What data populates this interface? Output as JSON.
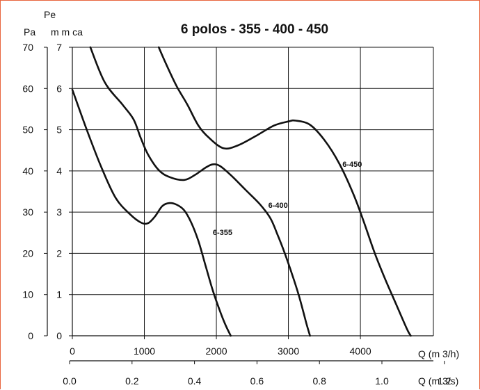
{
  "chart_data": {
    "type": "line",
    "title": "6 polos - 355 - 400 - 450",
    "y_left_label": "Pa",
    "y_right_label_top": "Pe",
    "y_right_label_bottom": "m m ca",
    "x_label_top": "Q (m 3/h)",
    "x_label_bottom": "Q (m 3/s)",
    "xlim": [
      0,
      5000
    ],
    "ylim": [
      0,
      7
    ],
    "grid": true,
    "x_ticks": [
      {
        "value": 0,
        "label": "0"
      },
      {
        "value": 1000,
        "label": "1000"
      },
      {
        "value": 2000,
        "label": "2000"
      },
      {
        "value": 3000,
        "label": "3000"
      },
      {
        "value": 4000,
        "label": "4000"
      }
    ],
    "x2_ticks": [
      {
        "value": 0.0,
        "label": "0.0"
      },
      {
        "value": 0.2,
        "label": "0.2"
      },
      {
        "value": 0.4,
        "label": "0.4"
      },
      {
        "value": 0.6,
        "label": "0.6"
      },
      {
        "value": 0.8,
        "label": "0.8"
      },
      {
        "value": 1.0,
        "label": "1.0"
      },
      {
        "value": 1.2,
        "label": "1.2"
      }
    ],
    "y_ticks": [
      {
        "value": 0,
        "label": "0"
      },
      {
        "value": 1,
        "label": "1"
      },
      {
        "value": 2,
        "label": "2"
      },
      {
        "value": 3,
        "label": "3"
      },
      {
        "value": 4,
        "label": "4"
      },
      {
        "value": 5,
        "label": "5"
      },
      {
        "value": 6,
        "label": "6"
      },
      {
        "value": 7,
        "label": "7"
      }
    ],
    "y_pa_ticks": [
      {
        "value": 0,
        "label": "0"
      },
      {
        "value": 10,
        "label": "10"
      },
      {
        "value": 20,
        "label": "20"
      },
      {
        "value": 30,
        "label": "30"
      },
      {
        "value": 40,
        "label": "40"
      },
      {
        "value": 50,
        "label": "50"
      },
      {
        "value": 60,
        "label": "60"
      },
      {
        "value": 70,
        "label": "70"
      }
    ],
    "series": [
      {
        "name": "6-355",
        "label_at": [
          1950,
          2.45
        ],
        "points": [
          [
            0,
            5.97
          ],
          [
            200,
            5.0
          ],
          [
            400,
            4.1
          ],
          [
            600,
            3.35
          ],
          [
            800,
            2.95
          ],
          [
            950,
            2.75
          ],
          [
            1050,
            2.73
          ],
          [
            1150,
            2.9
          ],
          [
            1250,
            3.15
          ],
          [
            1350,
            3.22
          ],
          [
            1450,
            3.18
          ],
          [
            1550,
            3.05
          ],
          [
            1650,
            2.75
          ],
          [
            1750,
            2.3
          ],
          [
            1850,
            1.7
          ],
          [
            1950,
            1.1
          ],
          [
            2050,
            0.6
          ],
          [
            2130,
            0.25
          ],
          [
            2200,
            0.0
          ]
        ]
      },
      {
        "name": "6-400",
        "label_at": [
          2720,
          3.1
        ],
        "points": [
          [
            250,
            7.0
          ],
          [
            450,
            6.15
          ],
          [
            700,
            5.6
          ],
          [
            850,
            5.25
          ],
          [
            950,
            4.8
          ],
          [
            1050,
            4.4
          ],
          [
            1200,
            4.02
          ],
          [
            1350,
            3.85
          ],
          [
            1550,
            3.78
          ],
          [
            1700,
            3.9
          ],
          [
            1850,
            4.08
          ],
          [
            1950,
            4.16
          ],
          [
            2050,
            4.12
          ],
          [
            2200,
            3.9
          ],
          [
            2400,
            3.55
          ],
          [
            2600,
            3.2
          ],
          [
            2750,
            2.85
          ],
          [
            2850,
            2.45
          ],
          [
            2950,
            2.0
          ],
          [
            3050,
            1.5
          ],
          [
            3150,
            0.95
          ],
          [
            3250,
            0.3
          ],
          [
            3300,
            0.0
          ]
        ]
      },
      {
        "name": "6-450",
        "label_at": [
          3750,
          4.1
        ],
        "points": [
          [
            1200,
            7.0
          ],
          [
            1300,
            6.6
          ],
          [
            1450,
            6.05
          ],
          [
            1600,
            5.6
          ],
          [
            1750,
            5.1
          ],
          [
            1900,
            4.8
          ],
          [
            2100,
            4.55
          ],
          [
            2300,
            4.62
          ],
          [
            2550,
            4.85
          ],
          [
            2800,
            5.1
          ],
          [
            3000,
            5.2
          ],
          [
            3100,
            5.22
          ],
          [
            3300,
            5.12
          ],
          [
            3500,
            4.75
          ],
          [
            3700,
            4.2
          ],
          [
            3900,
            3.45
          ],
          [
            4050,
            2.75
          ],
          [
            4200,
            2.0
          ],
          [
            4350,
            1.35
          ],
          [
            4500,
            0.75
          ],
          [
            4650,
            0.15
          ],
          [
            4700,
            0.0
          ]
        ]
      }
    ]
  }
}
